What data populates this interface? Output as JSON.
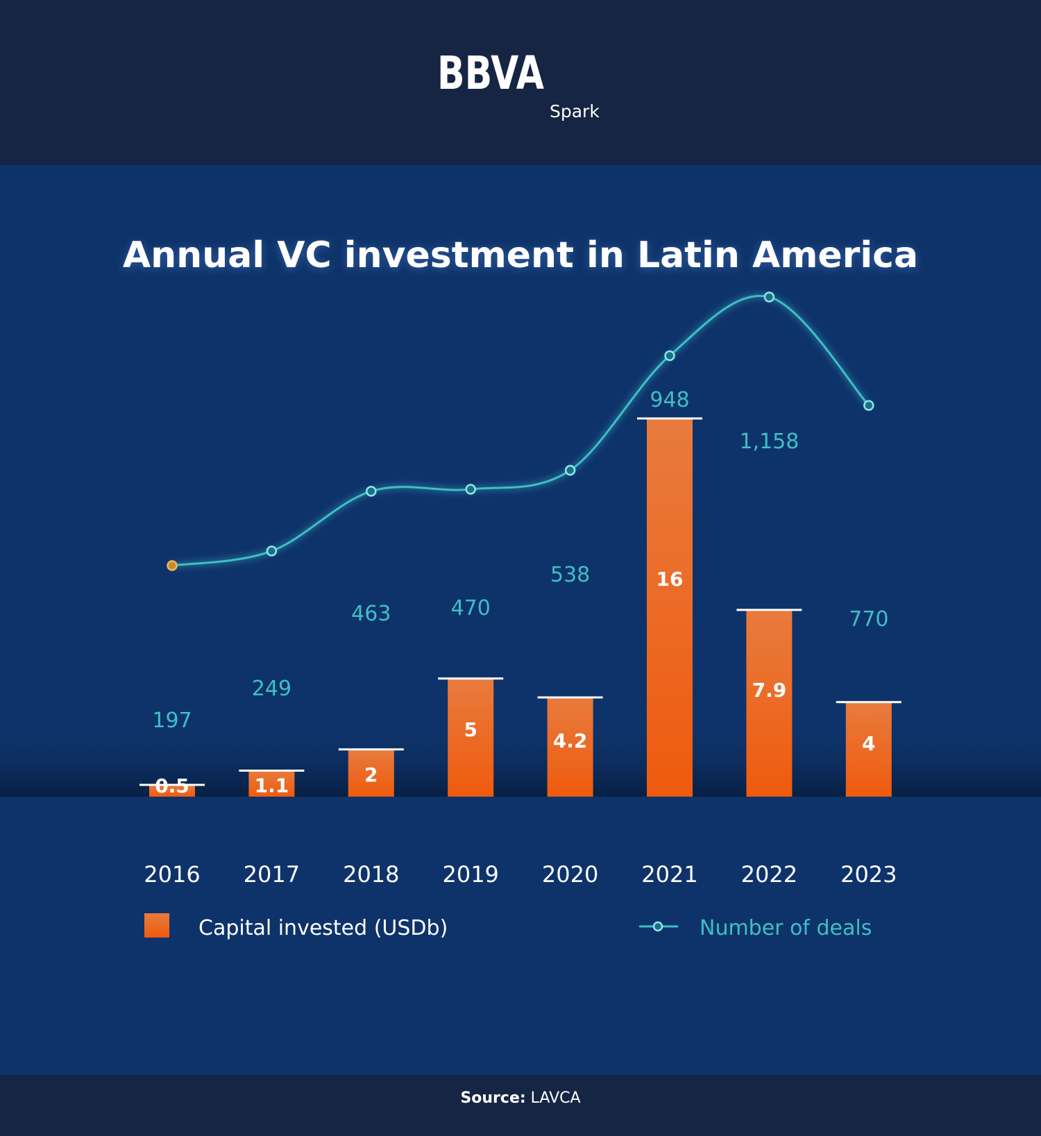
{
  "brand": {
    "logo_text": "BBVA",
    "sub": "Spark"
  },
  "colors": {
    "header_bg": "#172544",
    "body_bg": "#0e336a",
    "bar_top": "#e87b3e",
    "bar_bottom": "#ef5a0d",
    "line": "#3ebfc7",
    "first_point": "#e89a3a",
    "text": "#ffffff"
  },
  "chart_data": {
    "type": "bar",
    "title": "Annual VC investment in Latin America",
    "categories": [
      "2016",
      "2017",
      "2018",
      "2019",
      "2020",
      "2021",
      "2022",
      "2023"
    ],
    "series": [
      {
        "name": "Capital invested (USDb)",
        "type": "bar",
        "values": [
          0.5,
          1.1,
          2,
          5,
          4.2,
          16,
          7.9,
          4
        ],
        "labels": [
          "0.5",
          "1.1",
          "2",
          "5",
          "4.2",
          "16",
          "7.9",
          "4"
        ],
        "axis": "left",
        "ylim": [
          0,
          16
        ]
      },
      {
        "name": "Number of deals",
        "type": "line",
        "values": [
          197,
          249,
          463,
          470,
          538,
          948,
          1158,
          770
        ],
        "labels": [
          "197",
          "249",
          "463",
          "470",
          "538",
          "948",
          "1,158",
          "770"
        ],
        "axis": "right"
      }
    ],
    "legend": "bottom",
    "grid": false
  },
  "source": {
    "label": "Source:",
    "value": "LAVCA"
  }
}
